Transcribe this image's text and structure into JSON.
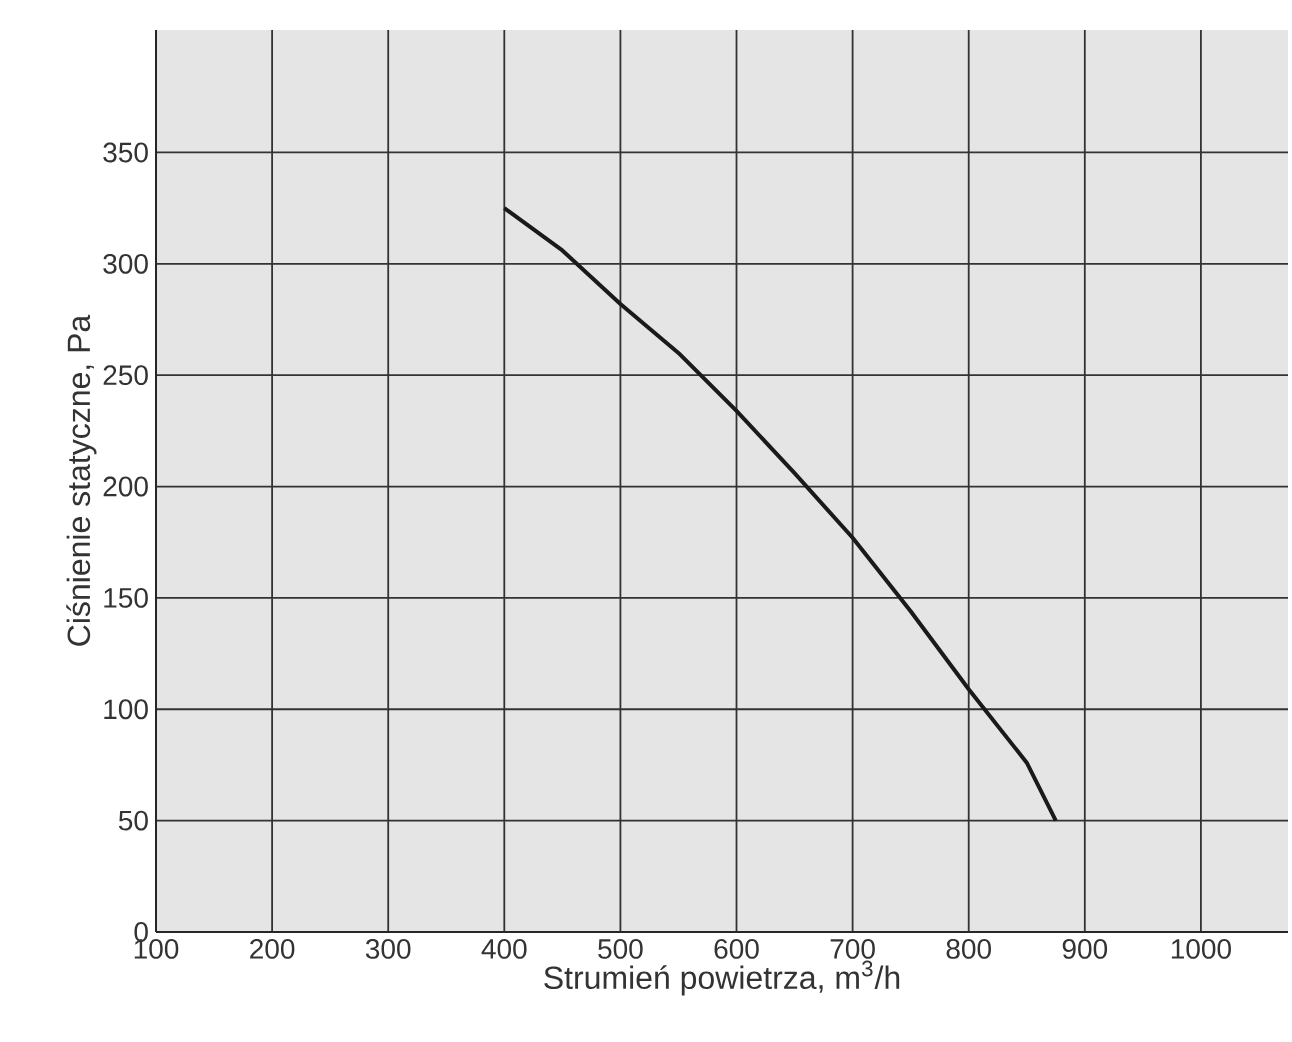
{
  "chart_data": {
    "type": "line",
    "xlabel": "Strumień powietrza, m$^{3}$/h",
    "ylabel": "Ciśnienie statyczne, Pa",
    "x": [
      400,
      450,
      500,
      550,
      600,
      650,
      700,
      750,
      800,
      850,
      875
    ],
    "series": [
      {
        "color": "#1a1a1a",
        "values": [
          325,
          306,
          282,
          260,
          234,
          206,
          177,
          144,
          109,
          76,
          50
        ]
      }
    ],
    "xlim": [
      100,
      1075
    ],
    "ylim": [
      0,
      405
    ],
    "xticks": [
      100,
      200,
      300,
      400,
      500,
      600,
      700,
      800,
      900,
      1000
    ],
    "yticks": [
      0,
      50,
      100,
      150,
      200,
      250,
      300,
      350
    ],
    "grid": true,
    "marker": "none",
    "line_style": "solid"
  }
}
